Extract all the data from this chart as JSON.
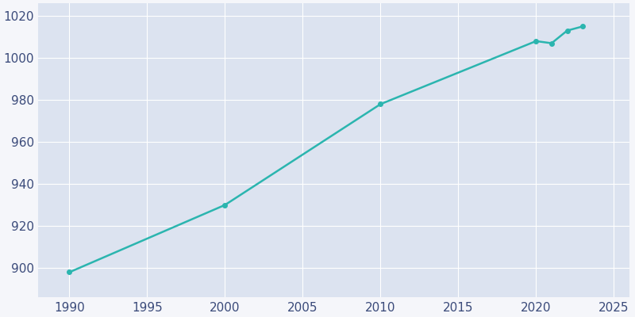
{
  "years": [
    1990,
    2000,
    2010,
    2020,
    2021,
    2022,
    2023
  ],
  "population": [
    898,
    930,
    978,
    1008,
    1007,
    1013,
    1015
  ],
  "line_color": "#2bb5af",
  "marker_color": "#2bb5af",
  "plot_bg_color": "#dce3f0",
  "fig_bg_color": "#f5f6fa",
  "grid_color": "#ffffff",
  "tick_color": "#3a4a7a",
  "xlim": [
    1988,
    2026
  ],
  "ylim": [
    886,
    1026
  ],
  "xticks": [
    1990,
    1995,
    2000,
    2005,
    2010,
    2015,
    2020,
    2025
  ],
  "yticks": [
    900,
    920,
    940,
    960,
    980,
    1000,
    1020
  ],
  "tick_fontsize": 11,
  "line_width": 1.8,
  "marker_size": 4
}
